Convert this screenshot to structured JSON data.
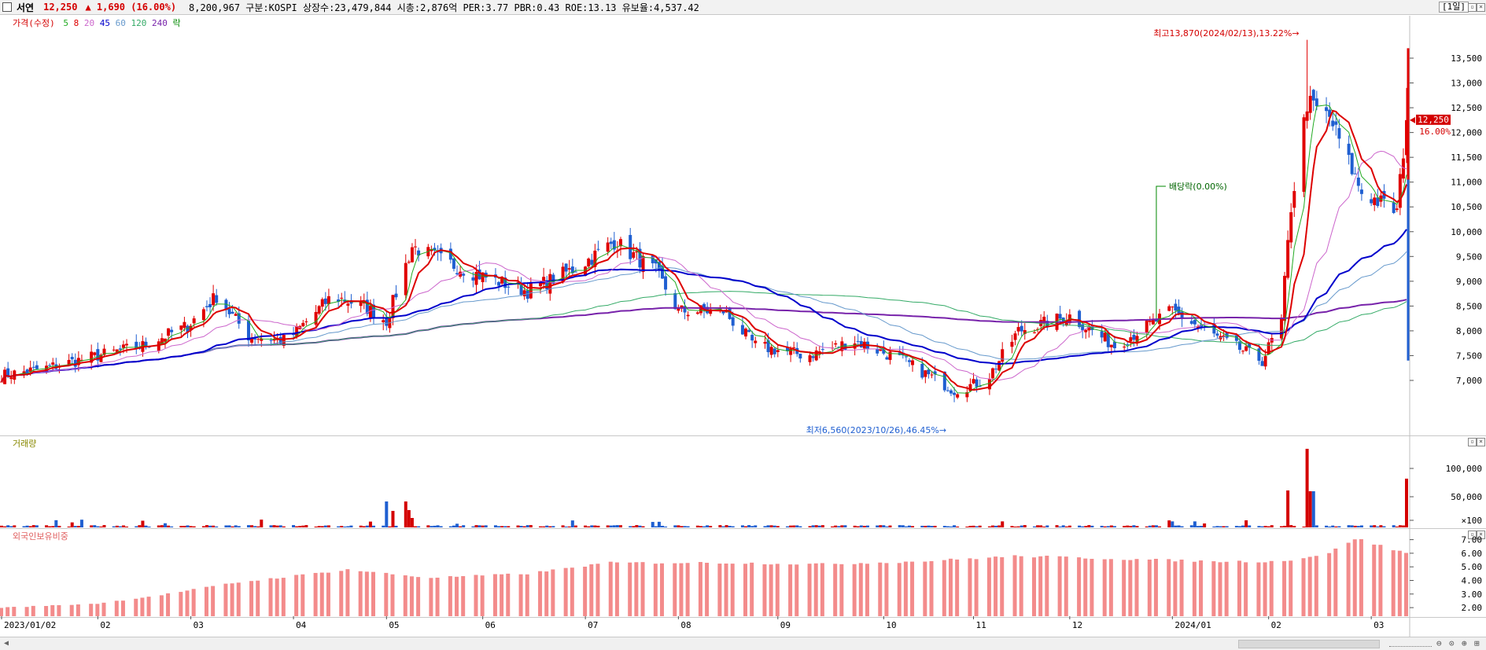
{
  "header": {
    "stock_name": "서연",
    "price": "12,250",
    "change": "▲ 1,690 (16.00%)",
    "info": "8,200,967  구분:KOSPI 상장수:23,479,844 시총:2,876억 PER:3.77 PBR:0.43 ROE:13.13 유보율:4,537.42",
    "period": "[1일]"
  },
  "price_legend": {
    "label": "가격(수정)",
    "items": [
      {
        "text": "5",
        "color": "#22aa22"
      },
      {
        "text": "8",
        "color": "#dd0000"
      },
      {
        "text": "20",
        "color": "#cc66cc"
      },
      {
        "text": "45",
        "color": "#0000cc"
      },
      {
        "text": "60",
        "color": "#6699cc"
      },
      {
        "text": "120",
        "color": "#33aa66"
      },
      {
        "text": "240",
        "color": "#7722aa"
      },
      {
        "text": "락",
        "color": "#008800"
      }
    ]
  },
  "volume_legend": {
    "label": "거래량"
  },
  "foreign_legend": {
    "label": "외국인보유비중"
  },
  "annotations": {
    "high": "최고13,870(2024/02/13),13.22%→",
    "low": "최저6,560(2023/10/26),46.45%→",
    "dividend": "배당락(0.00%)",
    "current_price": "12,250",
    "current_pct": "16.00%"
  },
  "chart_data": [
    {
      "type": "candlestick",
      "title": "가격(수정)",
      "y_ticks": [
        "7,000",
        "7,500",
        "8,000",
        "8,500",
        "9,000",
        "9,500",
        "10,000",
        "10,500",
        "11,000",
        "11,500",
        "12,000",
        "12,500",
        "13,000",
        "13,500"
      ],
      "ylim": [
        6400,
        14000
      ],
      "x_labels": [
        "2023/01/02",
        "02",
        "03",
        "04",
        "05",
        "06",
        "07",
        "08",
        "09",
        "10",
        "11",
        "12",
        "2024/01",
        "02",
        "03"
      ],
      "approx_close_path": [
        {
          "date": "2023-01-02",
          "close": 7100
        },
        {
          "date": "2023-01-16",
          "close": 7250
        },
        {
          "date": "2023-02-01",
          "close": 7500
        },
        {
          "date": "2023-02-15",
          "close": 7700
        },
        {
          "date": "2023-03-01",
          "close": 8100
        },
        {
          "date": "2023-03-10",
          "close": 8700
        },
        {
          "date": "2023-03-20",
          "close": 7900
        },
        {
          "date": "2023-04-01",
          "close": 7800
        },
        {
          "date": "2023-04-15",
          "close": 8700
        },
        {
          "date": "2023-04-25",
          "close": 8500
        },
        {
          "date": "2023-05-02",
          "close": 8200
        },
        {
          "date": "2023-05-10",
          "close": 9700
        },
        {
          "date": "2023-05-20",
          "close": 9400
        },
        {
          "date": "2023-06-01",
          "close": 9100
        },
        {
          "date": "2023-06-15",
          "close": 8800
        },
        {
          "date": "2023-07-01",
          "close": 9300
        },
        {
          "date": "2023-07-12",
          "close": 9800
        },
        {
          "date": "2023-07-25",
          "close": 9200
        },
        {
          "date": "2023-08-01",
          "close": 8400
        },
        {
          "date": "2023-08-15",
          "close": 8400
        },
        {
          "date": "2023-08-25",
          "close": 7700
        },
        {
          "date": "2023-09-10",
          "close": 7500
        },
        {
          "date": "2023-09-25",
          "close": 7800
        },
        {
          "date": "2023-10-10",
          "close": 7400
        },
        {
          "date": "2023-10-26",
          "close": 6800
        },
        {
          "date": "2023-11-05",
          "close": 7000
        },
        {
          "date": "2023-11-15",
          "close": 8000
        },
        {
          "date": "2023-12-01",
          "close": 8300
        },
        {
          "date": "2023-12-15",
          "close": 7700
        },
        {
          "date": "2024-01-02",
          "close": 8400
        },
        {
          "date": "2024-01-15",
          "close": 7900
        },
        {
          "date": "2024-01-30",
          "close": 7400
        },
        {
          "date": "2024-02-05",
          "close": 8200
        },
        {
          "date": "2024-02-08",
          "close": 10500
        },
        {
          "date": "2024-02-13",
          "close": 12600
        },
        {
          "date": "2024-02-20",
          "close": 12300
        },
        {
          "date": "2024-03-01",
          "close": 10800
        },
        {
          "date": "2024-03-12",
          "close": 10400
        },
        {
          "date": "2024-03-15",
          "close": 12250
        }
      ],
      "high": {
        "date": "2024-02-13",
        "value": 13870
      },
      "low": {
        "date": "2023-10-26",
        "value": 6560
      },
      "last_close": 12250
    },
    {
      "type": "bar",
      "title": "거래량",
      "y_ticks": [
        "100,000",
        "50,000",
        "×100"
      ],
      "note": "values in hundreds of shares; spikes early May 2023, mid Feb 2024 and last day"
    },
    {
      "type": "bar",
      "title": "외국인보유비중",
      "y_ticks": [
        "2.00",
        "3.00",
        "4.00",
        "5.00",
        "6.00",
        "7.00"
      ],
      "ylim": [
        1.5,
        7.5
      ],
      "approx_path": [
        {
          "date": "2023-01-02",
          "value": 2.0
        },
        {
          "date": "2023-02-01",
          "value": 2.3
        },
        {
          "date": "2023-02-20",
          "value": 2.9
        },
        {
          "date": "2023-03-15",
          "value": 3.8
        },
        {
          "date": "2023-04-20",
          "value": 4.8
        },
        {
          "date": "2023-05-15",
          "value": 4.2
        },
        {
          "date": "2023-06-15",
          "value": 4.5
        },
        {
          "date": "2023-07-10",
          "value": 5.3
        },
        {
          "date": "2023-08-15",
          "value": 5.3
        },
        {
          "date": "2023-09-15",
          "value": 5.2
        },
        {
          "date": "2023-10-15",
          "value": 5.4
        },
        {
          "date": "2023-11-15",
          "value": 5.8
        },
        {
          "date": "2023-12-15",
          "value": 5.6
        },
        {
          "date": "2024-01-15",
          "value": 5.4
        },
        {
          "date": "2024-02-05",
          "value": 5.4
        },
        {
          "date": "2024-02-20",
          "value": 6.0
        },
        {
          "date": "2024-02-28",
          "value": 7.1
        },
        {
          "date": "2024-03-15",
          "value": 6.0
        }
      ]
    }
  ]
}
